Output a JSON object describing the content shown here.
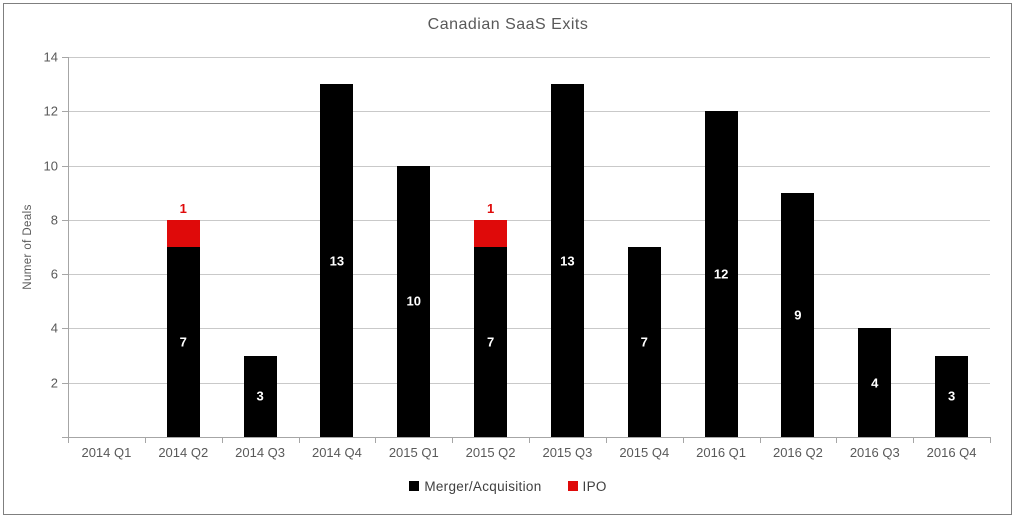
{
  "chart_data": {
    "type": "bar",
    "stacked": true,
    "title": "Canadian SaaS Exits",
    "xlabel": "",
    "ylabel": "Numer of Deals",
    "categories": [
      "2014 Q1",
      "2014 Q2",
      "2014 Q3",
      "2014 Q4",
      "2015 Q1",
      "2015 Q2",
      "2015 Q3",
      "2015 Q4",
      "2016 Q1",
      "2016 Q2",
      "2016 Q3",
      "2016 Q4"
    ],
    "series": [
      {
        "name": "Merger/Acquisition",
        "color": "#000000",
        "label_color": "#ffffff",
        "values": [
          0,
          7,
          3,
          13,
          10,
          7,
          13,
          7,
          12,
          9,
          4,
          3
        ]
      },
      {
        "name": "IPO",
        "color": "#df0a0a",
        "label_color": "#df0a0a",
        "values": [
          0,
          1,
          0,
          0,
          0,
          1,
          0,
          0,
          0,
          0,
          0,
          0
        ]
      }
    ],
    "ylim": [
      0,
      14
    ],
    "ytick_step": 2,
    "grid": true,
    "legend_position": "bottom",
    "colors": {
      "text": "#595959",
      "gridline": "#c9c9c9",
      "axis": "#a6a6a6",
      "frame_border": "#7f7f7f",
      "background": "#ffffff"
    }
  }
}
